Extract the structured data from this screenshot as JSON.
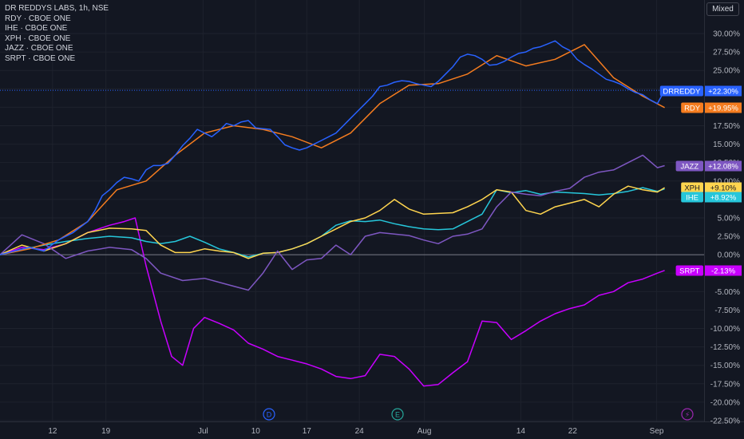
{
  "legend": {
    "main": "DR REDDYS LABS, 1h, NSE",
    "items": [
      "RDY · CBOE ONE",
      "IHE · CBOE ONE",
      "XPH · CBOE ONE",
      "JAZZ · CBOE ONE",
      "SRPT · CBOE ONE"
    ]
  },
  "scale_mode": "Mixed",
  "markers": [
    {
      "icon": "dividend-icon",
      "glyph": "D",
      "color": "#2962ff"
    },
    {
      "icon": "earnings-icon",
      "glyph": "E",
      "color": "#26a69a"
    },
    {
      "icon": "split-icon",
      "glyph": "⚡",
      "color": "#9c27b0"
    }
  ],
  "chart_data": {
    "type": "line",
    "y_unit": "%",
    "ylim": [
      -22.5,
      30
    ],
    "y_ticks": [
      "30.00%",
      "27.50%",
      "25.00%",
      "22.50%",
      "20.00%",
      "17.50%",
      "15.00%",
      "12.50%",
      "10.00%",
      "7.50%",
      "5.00%",
      "2.50%",
      "0.00%",
      "-2.50%",
      "-5.00%",
      "-7.50%",
      "-10.00%",
      "-12.50%",
      "-15.00%",
      "-17.50%",
      "-20.00%",
      "-22.50%"
    ],
    "x_ticks": [
      "12",
      "19",
      "Jul",
      "10",
      "17",
      "24",
      "Aug",
      "14",
      "22",
      "Sep"
    ],
    "xlim": [
      0,
      100
    ],
    "x_tick_positions": [
      7.2,
      14.5,
      27.8,
      35.0,
      42.0,
      49.2,
      58.1,
      71.3,
      78.4,
      89.9
    ],
    "zero_line": 0,
    "series": [
      {
        "name": "DRREDDY",
        "label": "DRREDDY",
        "value_label": "+22.30%",
        "color": "#2962ff",
        "last": 22.3,
        "x": [
          0,
          2,
          4,
          6,
          8,
          10,
          12,
          13,
          14,
          15,
          16,
          17,
          18,
          19,
          20,
          21,
          22,
          23,
          24,
          25,
          26,
          27,
          28,
          29,
          30,
          31,
          32,
          33,
          34,
          35,
          36,
          37,
          38,
          39,
          40,
          41,
          42,
          43,
          44,
          45,
          46,
          47,
          48,
          49,
          50,
          51,
          52,
          53,
          54,
          55,
          56,
          57,
          58,
          59,
          60,
          61,
          62,
          63,
          64,
          65,
          66,
          67,
          68,
          69,
          70,
          71,
          72,
          73,
          74,
          75,
          76,
          77,
          78,
          79,
          80,
          81,
          82,
          83,
          84,
          85,
          86,
          87,
          88,
          89,
          90,
          91
        ],
        "y": [
          0,
          0.5,
          1,
          0.5,
          2,
          3,
          4.5,
          6,
          8,
          8.8,
          9.8,
          10.5,
          10.3,
          10,
          11.5,
          12.1,
          12.1,
          12.4,
          13.5,
          14.8,
          15.8,
          17,
          16.5,
          16,
          16.8,
          17.8,
          17.5,
          18,
          18.2,
          17.2,
          17.1,
          17,
          16,
          14.9,
          14.5,
          14.2,
          14.5,
          15,
          15.5,
          16,
          16.5,
          17.5,
          18.5,
          19.5,
          20.5,
          21.5,
          22.8,
          23,
          23.4,
          23.6,
          23.5,
          23.2,
          23,
          22.8,
          23.5,
          24.5,
          25.5,
          26.8,
          27.2,
          27,
          26.5,
          25.7,
          25.8,
          26.2,
          26.8,
          27.3,
          27.5,
          28,
          28.2,
          28.6,
          29,
          28.2,
          27.7,
          26.5,
          25.8,
          25.2,
          24.5,
          23.8,
          23.5,
          23.1,
          22.5,
          22,
          21.7,
          21,
          20.5,
          22.3
        ]
      },
      {
        "name": "RDY",
        "label": "RDY",
        "value_label": "+19.95%",
        "color": "#f57c1f",
        "last": 19.95,
        "x": [
          0,
          4,
          8,
          12,
          16,
          20,
          24,
          28,
          32,
          36,
          40,
          44,
          48,
          52,
          56,
          60,
          64,
          68,
          72,
          76,
          80,
          84,
          88,
          91
        ],
        "y": [
          0,
          0.8,
          2,
          4.5,
          8.8,
          10,
          13.5,
          16.5,
          17.5,
          17,
          16,
          14.5,
          16.5,
          20.5,
          23,
          23.2,
          24.5,
          27,
          25.6,
          26.5,
          28.5,
          24,
          21.5,
          19.95
        ]
      },
      {
        "name": "JAZZ",
        "label": "JAZZ",
        "value_label": "+12.08%",
        "color": "#7e57c2",
        "last": 12.08,
        "x": [
          0,
          3,
          6,
          9,
          12,
          15,
          18,
          20,
          22,
          25,
          28,
          31,
          34,
          36,
          38,
          40,
          42,
          44,
          46,
          48,
          50,
          52,
          54,
          56,
          58,
          60,
          62,
          64,
          66,
          68,
          70,
          72,
          74,
          76,
          78,
          80,
          82,
          84,
          86,
          88,
          90,
          91
        ],
        "y": [
          0,
          2.7,
          1.5,
          -0.5,
          0.5,
          1,
          0.7,
          -0.5,
          -2.5,
          -3.5,
          -3.2,
          -4,
          -4.8,
          -2.5,
          0.5,
          -2,
          -0.7,
          -0.5,
          1.3,
          0,
          2.5,
          3,
          2.8,
          2.6,
          2,
          1.5,
          2.5,
          2.8,
          3.5,
          6.5,
          8.5,
          8.2,
          8,
          8.6,
          9,
          10.5,
          11.2,
          11.5,
          12.5,
          13.5,
          11.8,
          12.08
        ]
      },
      {
        "name": "XPH",
        "label": "XPH",
        "value_label": "+9.10%",
        "color": "#ffd54f",
        "last": 9.1,
        "x": [
          0,
          3,
          6,
          9,
          12,
          15,
          18,
          20,
          22,
          24,
          26,
          28,
          30,
          32,
          34,
          36,
          38,
          40,
          42,
          44,
          46,
          48,
          50,
          52,
          54,
          56,
          58,
          60,
          62,
          64,
          66,
          68,
          70,
          72,
          74,
          76,
          78,
          80,
          82,
          84,
          86,
          88,
          90,
          91
        ],
        "y": [
          0,
          1.3,
          0.5,
          1.5,
          3,
          3.6,
          3.5,
          3.3,
          1.3,
          0.3,
          0.3,
          0.8,
          0.5,
          0.3,
          -0.5,
          0.2,
          0.3,
          0.8,
          1.5,
          2.5,
          3.5,
          4.5,
          5,
          6,
          7.5,
          6.2,
          5.5,
          5.6,
          5.7,
          6.5,
          7.5,
          8.8,
          8.5,
          6,
          5.5,
          6.5,
          7,
          7.5,
          6.5,
          8.2,
          9.3,
          8.8,
          8.5,
          9.1
        ]
      },
      {
        "name": "IHE",
        "label": "IHE",
        "value_label": "+8.92%",
        "color": "#26c6da",
        "last": 8.92,
        "x": [
          0,
          3,
          6,
          9,
          12,
          15,
          18,
          20,
          22,
          24,
          26,
          28,
          30,
          32,
          34,
          36,
          38,
          40,
          42,
          44,
          46,
          48,
          50,
          52,
          54,
          56,
          58,
          60,
          62,
          64,
          66,
          68,
          70,
          72,
          74,
          76,
          78,
          80,
          82,
          84,
          86,
          88,
          90,
          91
        ],
        "y": [
          0,
          0.7,
          1.3,
          1.8,
          2.2,
          2.5,
          2.3,
          1.8,
          1.5,
          1.8,
          2.5,
          1.7,
          0.8,
          0.3,
          -0.3,
          0.2,
          0.3,
          0.8,
          1.5,
          2.5,
          4,
          4.6,
          4.5,
          4.7,
          4.2,
          3.8,
          3.5,
          3.4,
          3.5,
          4.5,
          5.5,
          8.8,
          8.4,
          8.7,
          8.2,
          8.5,
          8.4,
          8.3,
          8.1,
          8.3,
          8.6,
          9.1,
          8.6,
          8.92
        ]
      },
      {
        "name": "SRPT",
        "label": "SRPT",
        "value_label": "-2.13%",
        "color": "#c800ff",
        "last": -2.13,
        "x": [
          0,
          3,
          6,
          9,
          12,
          15,
          17,
          18.5,
          20,
          22,
          23.5,
          25,
          26.5,
          28,
          30,
          32,
          34,
          36,
          38,
          40,
          42,
          44,
          46,
          48,
          50,
          52,
          54,
          56,
          58,
          60,
          62,
          64,
          66,
          68,
          70,
          72,
          74,
          76,
          78,
          80,
          82,
          84,
          86,
          88,
          90,
          91
        ],
        "y": [
          0,
          1,
          0.7,
          1.5,
          3,
          4,
          4.5,
          5,
          -1.5,
          -9,
          -13.8,
          -15,
          -10,
          -8.5,
          -9.3,
          -10.2,
          -12,
          -12.8,
          -13.8,
          -14.3,
          -14.8,
          -15.5,
          -16.5,
          -16.8,
          -16.4,
          -13.5,
          -13.8,
          -15.5,
          -17.8,
          -17.6,
          -16,
          -14.5,
          -9,
          -9.2,
          -11.5,
          -10.3,
          -9,
          -8,
          -7.3,
          -6.8,
          -5.5,
          -5,
          -3.8,
          -3.3,
          -2.5,
          -2.13
        ]
      }
    ]
  }
}
